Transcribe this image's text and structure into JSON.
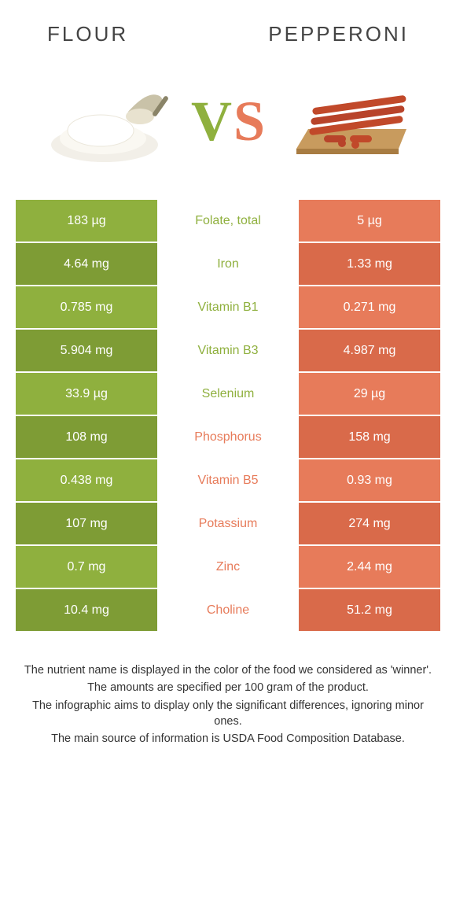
{
  "colors": {
    "left": "#8fb03e",
    "leftDark": "#7e9c35",
    "right": "#e77b5a",
    "rightDark": "#d96a4a",
    "vsLeft": "#8fb03e",
    "vsRight": "#e77b5a",
    "background": "#ffffff",
    "text": "#333333"
  },
  "header": {
    "leftTitle": "Flour",
    "rightTitle": "Pepperoni"
  },
  "vs": {
    "v": "V",
    "s": "S"
  },
  "table": {
    "rows": [
      {
        "left": "183 µg",
        "label": "Folate, total",
        "right": "5 µg",
        "winner": "left"
      },
      {
        "left": "4.64 mg",
        "label": "Iron",
        "right": "1.33 mg",
        "winner": "left"
      },
      {
        "left": "0.785 mg",
        "label": "Vitamin B1",
        "right": "0.271 mg",
        "winner": "left"
      },
      {
        "left": "5.904 mg",
        "label": "Vitamin B3",
        "right": "4.987 mg",
        "winner": "left"
      },
      {
        "left": "33.9 µg",
        "label": "Selenium",
        "right": "29 µg",
        "winner": "left"
      },
      {
        "left": "108 mg",
        "label": "Phosphorus",
        "right": "158 mg",
        "winner": "right"
      },
      {
        "left": "0.438 mg",
        "label": "Vitamin B5",
        "right": "0.93 mg",
        "winner": "right"
      },
      {
        "left": "107 mg",
        "label": "Potassium",
        "right": "274 mg",
        "winner": "right"
      },
      {
        "left": "0.7 mg",
        "label": "Zinc",
        "right": "2.44 mg",
        "winner": "right"
      },
      {
        "left": "10.4 mg",
        "label": "Choline",
        "right": "51.2 mg",
        "winner": "right"
      }
    ]
  },
  "footer": {
    "l1": "The nutrient name is displayed in the color of the food we considered as 'winner'.",
    "l2": "The amounts are specified per 100 gram of the product.",
    "l3": "The infographic aims to display only the significant differences, ignoring minor ones.",
    "l4": "The main source of information is USDA Food Composition Database."
  }
}
